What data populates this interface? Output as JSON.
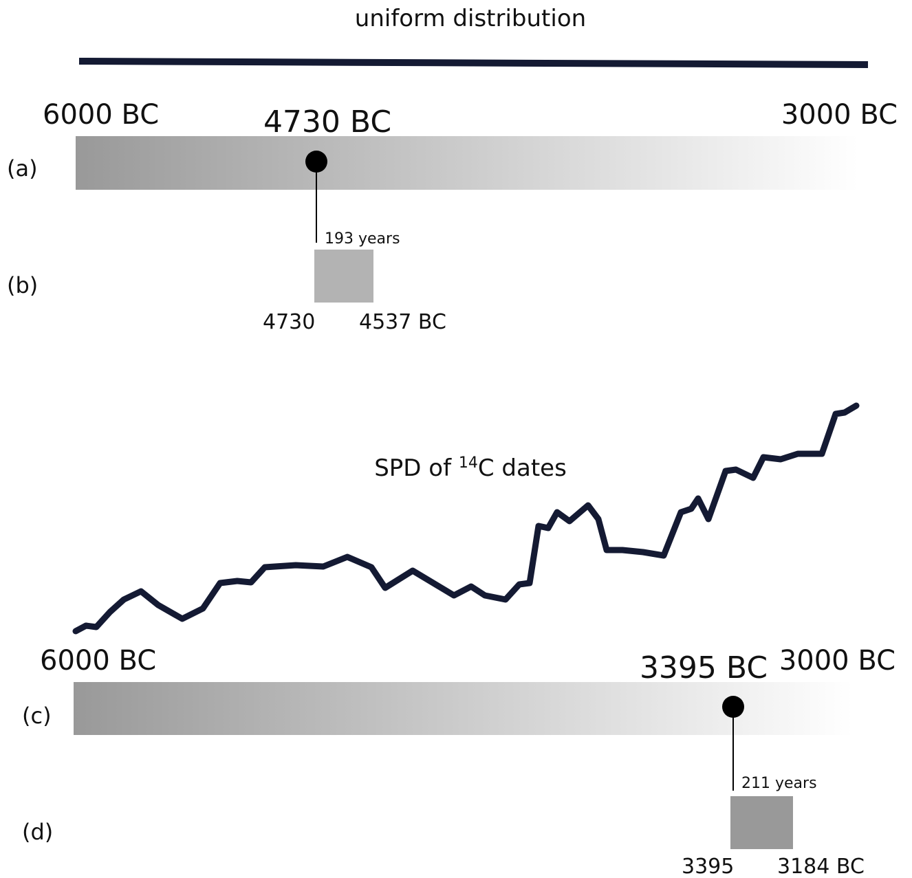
{
  "top": {
    "title": "uniform distribution",
    "panel_a": {
      "label": "(a)",
      "start": "6000 BC",
      "end": "3000 BC",
      "date": "4730 BC"
    },
    "panel_b": {
      "label": "(b)",
      "span": "193 years",
      "from": "4730",
      "to": "4537 BC"
    }
  },
  "bottom": {
    "title": {
      "prefix": "SPD of ",
      "superscript": "14",
      "suffix": "C dates"
    },
    "panel_c": {
      "label": "(c)",
      "start": "6000 BC",
      "end": "3000 BC",
      "date": "3395 BC"
    },
    "panel_d": {
      "label": "(d)",
      "span": "211 years",
      "from": "3395",
      "to": "3184 BC"
    }
  }
}
